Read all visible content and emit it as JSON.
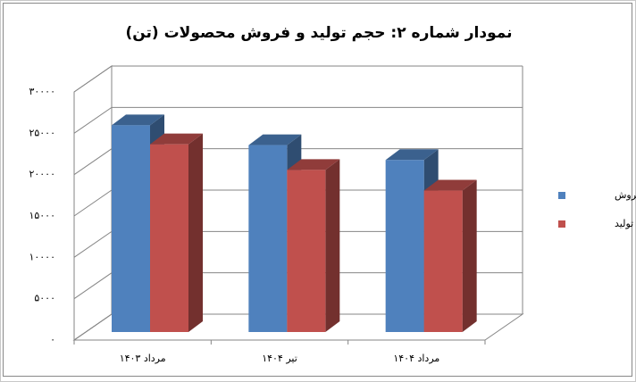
{
  "chart_data": {
    "type": "bar3d",
    "title": "نمودار شماره ۲: حجم تولید و فروش محصولات (تن)",
    "categories": [
      "مرداد ۱۴۰۳",
      "تیر ۱۴۰۴",
      "مرداد ۱۴۰۴"
    ],
    "series": [
      {
        "name": "حجم فروش",
        "color": "#4f81bd",
        "values": [
          25000,
          22600,
          20800
        ]
      },
      {
        "name": "حجم تولید",
        "color": "#c0504d",
        "values": [
          22700,
          19600,
          17100
        ]
      }
    ],
    "ylim": [
      0,
      30000
    ],
    "yticks": [
      {
        "value": 0,
        "label": "۰"
      },
      {
        "value": 5000,
        "label": "۵۰۰۰"
      },
      {
        "value": 10000,
        "label": "۱۰۰۰۰"
      },
      {
        "value": 15000,
        "label": "۱۵۰۰۰"
      },
      {
        "value": 20000,
        "label": "۲۰۰۰۰"
      },
      {
        "value": 25000,
        "label": "۲۵۰۰۰"
      },
      {
        "value": 30000,
        "label": "۳۰۰۰۰"
      }
    ],
    "grid": true,
    "legend": "right"
  }
}
